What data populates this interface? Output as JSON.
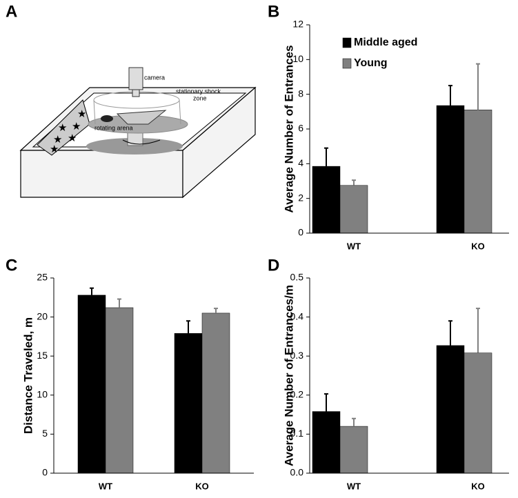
{
  "diagram": {
    "label": "A",
    "texts": [
      "camera",
      "stationary shock",
      "zone",
      "rotating arena"
    ]
  },
  "chart_data": [
    {
      "type": "bar",
      "label": "B",
      "ylabel": "Average Number of Entrances",
      "categories": [
        "WT",
        "KO"
      ],
      "series": [
        {
          "name": "Middle aged",
          "color": "#000000",
          "values": [
            3.85,
            7.35
          ],
          "errors": [
            1.05,
            1.15
          ]
        },
        {
          "name": "Young",
          "color": "#808080",
          "values": [
            2.75,
            7.1
          ],
          "errors": [
            0.3,
            2.65
          ]
        }
      ],
      "ylim": [
        0,
        12
      ],
      "yticks": [
        0,
        2,
        4,
        6,
        8,
        10,
        12
      ],
      "legend": "upper left"
    },
    {
      "type": "bar",
      "label": "C",
      "ylabel": "Distance Traveled, m",
      "categories": [
        "WT",
        "KO"
      ],
      "series": [
        {
          "color": "#000000",
          "values": [
            22.8,
            17.9
          ],
          "errors": [
            0.9,
            1.6
          ]
        },
        {
          "color": "#808080",
          "values": [
            21.2,
            20.5
          ],
          "errors": [
            1.1,
            0.6
          ]
        }
      ],
      "ylim": [
        0,
        25
      ],
      "yticks": [
        0,
        5,
        10,
        15,
        20,
        25
      ]
    },
    {
      "type": "bar",
      "label": "D",
      "ylabel": "Average Number of Entrances/m",
      "categories": [
        "WT",
        "KO"
      ],
      "series": [
        {
          "color": "#000000",
          "values": [
            0.158,
            0.327
          ],
          "errors": [
            0.045,
            0.063
          ]
        },
        {
          "color": "#808080",
          "values": [
            0.12,
            0.308
          ],
          "errors": [
            0.02,
            0.114
          ]
        }
      ],
      "ylim": [
        0,
        0.5
      ],
      "yticks": [
        {
          "value": 0,
          "label": "0.0"
        },
        0.1,
        0.2,
        0.3,
        0.4,
        0.5
      ]
    }
  ]
}
